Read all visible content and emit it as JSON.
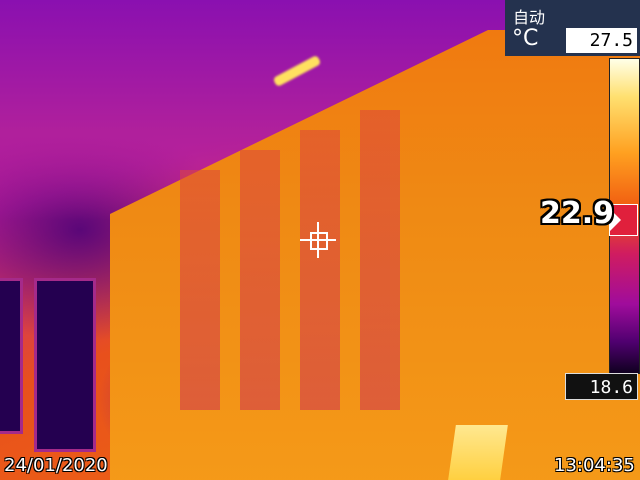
{
  "hud": {
    "mode": "自动",
    "unit": "°C",
    "max_temp": "27.5",
    "min_temp": "18.6",
    "center_temp": "22.9"
  },
  "footer": {
    "date": "24/01/2020",
    "time": "13:04:35"
  },
  "colors": {
    "hud_background": "#24324e",
    "marker": "#e0203c"
  },
  "icons": {
    "crosshair": "crosshair-icon",
    "marker": "triangle-right-icon"
  }
}
